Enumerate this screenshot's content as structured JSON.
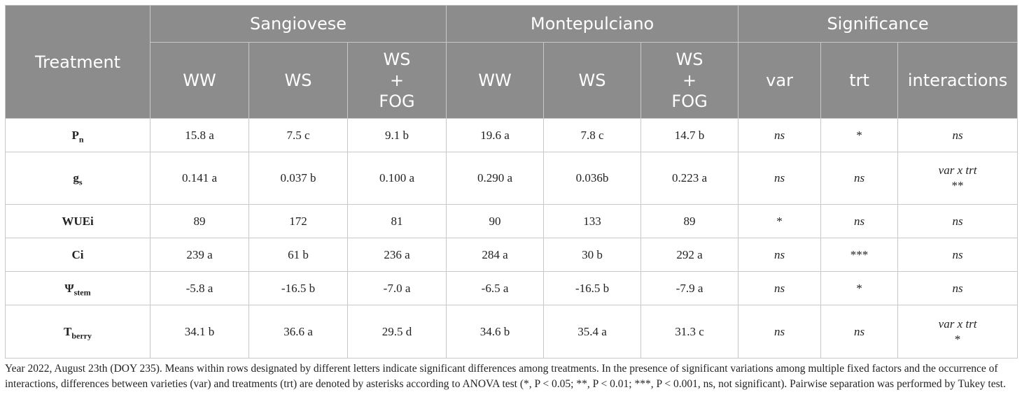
{
  "header": {
    "treatment": "Treatment",
    "groups": [
      "Sangiovese",
      "Montepulciano",
      "Significance"
    ],
    "subcolumns": [
      [
        "WW"
      ],
      [
        "WS"
      ],
      [
        "WS",
        "+",
        "FOG"
      ],
      [
        "WW"
      ],
      [
        "WS"
      ],
      [
        "WS",
        "+",
        "FOG"
      ],
      [
        "var"
      ],
      [
        "trt"
      ],
      [
        "interactions"
      ]
    ]
  },
  "rows": [
    {
      "label": "P",
      "label_sub": "n",
      "values": [
        "15.8 a",
        "7.5 c",
        "9.1 b",
        "19.6 a",
        "7.8 c",
        "14.7 b"
      ],
      "var": "ns",
      "trt": "*",
      "interactions": [
        "ns"
      ]
    },
    {
      "label": "g",
      "label_sub": "s",
      "values": [
        "0.141 a",
        "0.037 b",
        "0.100 a",
        "0.290 a",
        "0.036b",
        "0.223 a"
      ],
      "var": "ns",
      "trt": "ns",
      "interactions": [
        "var x trt",
        "**"
      ]
    },
    {
      "label": "WUEi",
      "label_sub": "",
      "values": [
        "89",
        "172",
        "81",
        "90",
        "133",
        "89"
      ],
      "var": "*",
      "trt": "ns",
      "interactions": [
        "ns"
      ]
    },
    {
      "label": "Ci",
      "label_sub": "",
      "values": [
        "239 a",
        "61 b",
        "236 a",
        "284 a",
        "30 b",
        "292 a"
      ],
      "var": "ns",
      "trt": "***",
      "interactions": [
        "ns"
      ]
    },
    {
      "label": "Ψ",
      "label_sub": "stem",
      "values": [
        "-5.8 a",
        "-16.5 b",
        "-7.0 a",
        "-6.5 a",
        "-16.5 b",
        "-7.9 a"
      ],
      "var": "ns",
      "trt": "*",
      "interactions": [
        "ns"
      ]
    },
    {
      "label": "T",
      "label_sub": "berry",
      "values": [
        "34.1 b",
        "36.6 a",
        "29.5 d",
        "34.6 b",
        "35.4 a",
        "31.3 c"
      ],
      "var": "ns",
      "trt": "ns",
      "interactions": [
        "var x trt",
        "*"
      ]
    }
  ],
  "footnote": "Year 2022, August 23th (DOY 235). Means within rows designated by different letters indicate significant differences among treatments. In the presence of significant variations among multiple fixed factors and the occurrence of interactions, differences between varieties (var) and treatments (trt) are denoted by asterisks according to ANOVA test (*, P < 0.05; **, P < 0.01; ***, P < 0.001, ns, not significant). Pairwise separation was performed by Tukey test."
}
